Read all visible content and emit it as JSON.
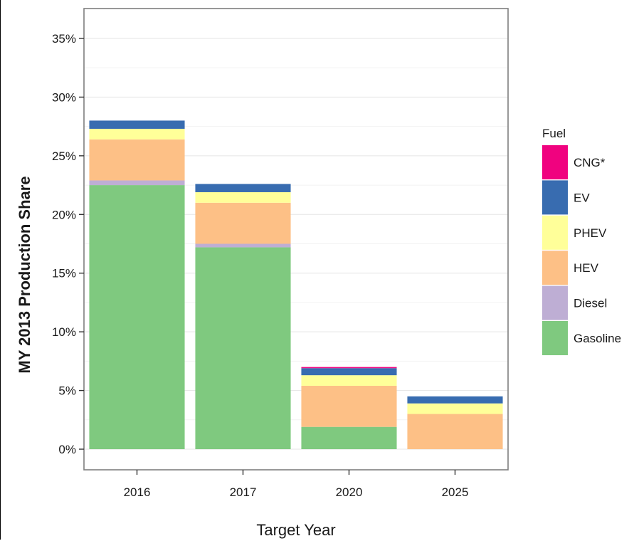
{
  "chart_data": {
    "type": "bar",
    "stacked": true,
    "categories": [
      "2016",
      "2017",
      "2020",
      "2025"
    ],
    "xlabel": "Target Year",
    "ylabel": "MY 2013 Production Share",
    "ylim": [
      0,
      37
    ],
    "yticks": [
      0,
      5,
      10,
      15,
      20,
      25,
      30,
      35
    ],
    "ytick_labels": [
      "0%",
      "5%",
      "10%",
      "15%",
      "20%",
      "25%",
      "30%",
      "35%"
    ],
    "grid": true,
    "legend": {
      "title": "Fuel",
      "placement": "right"
    },
    "series": [
      {
        "name": "Gasoline",
        "color": "#7fc97f",
        "values": [
          22.5,
          17.2,
          1.9,
          0
        ]
      },
      {
        "name": "Diesel",
        "color": "#beaed4",
        "values": [
          0.4,
          0.3,
          0,
          0
        ]
      },
      {
        "name": "HEV",
        "color": "#fdc086",
        "values": [
          3.5,
          3.5,
          3.5,
          3.0
        ]
      },
      {
        "name": "PHEV",
        "color": "#ffff99",
        "values": [
          0.9,
          0.9,
          0.9,
          0.9
        ]
      },
      {
        "name": "EV",
        "color": "#386cb0",
        "values": [
          0.7,
          0.7,
          0.6,
          0.6
        ]
      },
      {
        "name": "CNG*",
        "color": "#f0027f",
        "values": [
          0,
          0,
          0.1,
          0
        ]
      }
    ]
  }
}
